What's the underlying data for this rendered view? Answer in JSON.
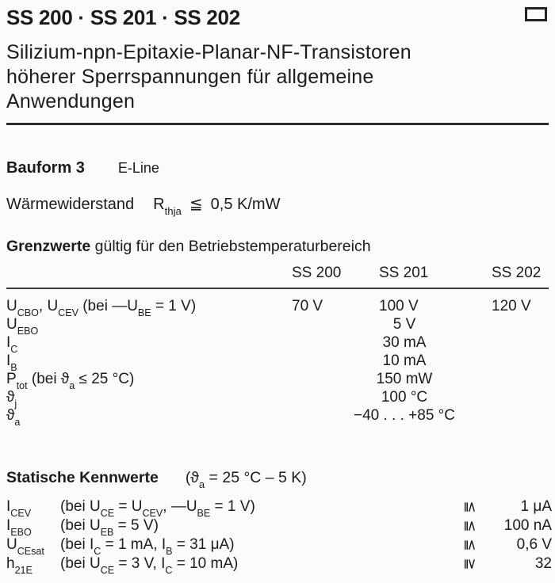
{
  "page": {
    "background": "#fbfbf9",
    "ink": "#1c1c1c"
  },
  "header": {
    "title": "SS 200 · SS 201 · SS 202",
    "corner_icon": "small-rectangle-marker",
    "subtitle_lines": [
      "Silizium-npn-Epitaxie-Planar-NF-Transistoren",
      "höherer Sperrspannungen für allgemeine",
      "Anwendungen"
    ]
  },
  "package": {
    "label": "Bauform 3",
    "value": "E-Line"
  },
  "thermal": {
    "label": "Wärmewiderstand",
    "symbol": [
      [
        "R"
      ],
      [
        "thja",
        "sub"
      ]
    ],
    "relation": "≦",
    "value": "0,5 K/mW"
  },
  "limits": {
    "heading_bold": "Grenzwerte",
    "heading_rest": "gültig für den Betriebstemperaturbereich",
    "columns": [
      "SS 200",
      "SS 201",
      "SS 202"
    ],
    "rows": [
      {
        "label": [
          [
            "U"
          ],
          [
            "CBO",
            "sub"
          ],
          [
            ", U"
          ],
          [
            "CEV",
            "sub"
          ],
          [
            " (bei —U"
          ],
          [
            "BE",
            "sub"
          ],
          [
            " = 1 V)"
          ]
        ],
        "values": {
          "c1": "70 V",
          "c2": "100 V",
          "c3": "120 V"
        }
      },
      {
        "label": [
          [
            "U"
          ],
          [
            "EBO",
            "sub"
          ]
        ],
        "shared": "5 V"
      },
      {
        "label": [
          [
            "I"
          ],
          [
            "C",
            "sub"
          ]
        ],
        "shared": "30 mA"
      },
      {
        "label": [
          [
            "I"
          ],
          [
            "B",
            "sub"
          ]
        ],
        "shared": "10 mA"
      },
      {
        "label": [
          [
            "P"
          ],
          [
            "tot",
            "sub"
          ],
          [
            " (bei ϑ"
          ],
          [
            "a",
            "sub"
          ],
          [
            " ≤ 25 °C)"
          ]
        ],
        "shared": "150 mW"
      },
      {
        "label": [
          [
            "ϑ"
          ],
          [
            "j",
            "sub"
          ]
        ],
        "shared": "100 °C"
      },
      {
        "label": [
          [
            "ϑ"
          ],
          [
            "a",
            "sub"
          ]
        ],
        "shared": "−40 . . . +85 °C"
      }
    ]
  },
  "statics": {
    "heading": "Statische Kennwerte",
    "condition": [
      [
        "(ϑ"
      ],
      [
        "a",
        "sub"
      ],
      [
        " = 25 °C – 5 K)"
      ]
    ],
    "rows": [
      {
        "symbol": [
          [
            "I"
          ],
          [
            "CEV",
            "sub"
          ]
        ],
        "condition": [
          [
            "(bei U"
          ],
          [
            "CE",
            "sub"
          ],
          [
            " = U"
          ],
          [
            "CEV",
            "sub"
          ],
          [
            ", —U"
          ],
          [
            "BE",
            "sub"
          ],
          [
            " = 1 V)"
          ]
        ],
        "relation": "≦",
        "value": "1 μA"
      },
      {
        "symbol": [
          [
            "I"
          ],
          [
            "EBO",
            "sub"
          ]
        ],
        "condition": [
          [
            "(bei U"
          ],
          [
            "EB",
            "sub"
          ],
          [
            " = 5 V)"
          ]
        ],
        "relation": "≦",
        "value": "100 nA"
      },
      {
        "symbol": [
          [
            "U"
          ],
          [
            "CEsat",
            "sub"
          ]
        ],
        "condition": [
          [
            "(bei I"
          ],
          [
            "C",
            "sub"
          ],
          [
            "  = 1 mA, I"
          ],
          [
            "B",
            "sub"
          ],
          [
            " = 31 μA)"
          ]
        ],
        "relation": "≦",
        "value": "0,6 V"
      },
      {
        "symbol": [
          [
            "h"
          ],
          [
            "21E",
            "sub"
          ]
        ],
        "condition": [
          [
            "(bei U"
          ],
          [
            "CE",
            "sub"
          ],
          [
            " = 3 V,  I"
          ],
          [
            "C",
            "sub"
          ],
          [
            " = 10 mA)"
          ]
        ],
        "relation": "≧",
        "value": "32"
      }
    ]
  }
}
